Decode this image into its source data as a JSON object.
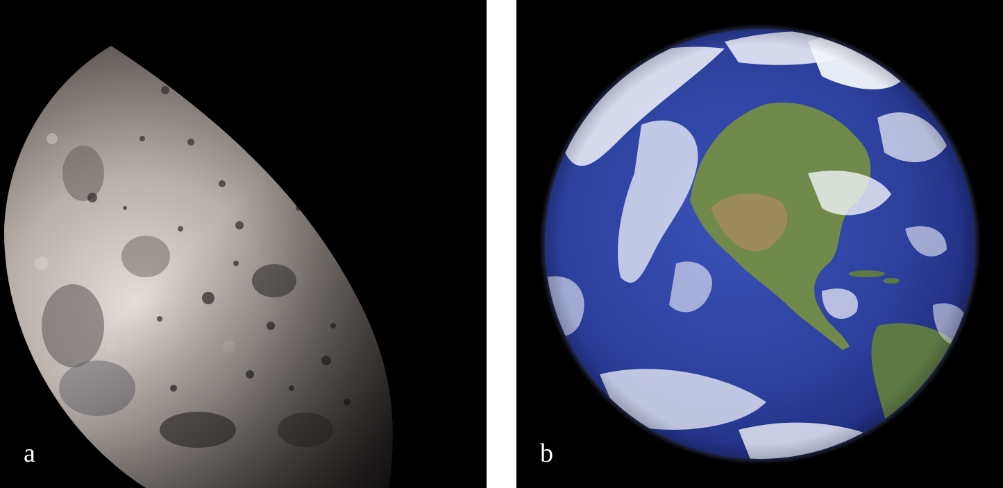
{
  "panels": [
    {
      "label": "a",
      "subject": "moon"
    },
    {
      "label": "b",
      "subject": "earth"
    }
  ],
  "colors": {
    "background": "#000000",
    "label": "#ffffff",
    "moon_highlight": "#d6cfca",
    "moon_shadow": "#2a2726",
    "earth_ocean": "#2c3f9c",
    "earth_land": "#6f8a4a",
    "earth_cloud": "#f2f4fa"
  }
}
